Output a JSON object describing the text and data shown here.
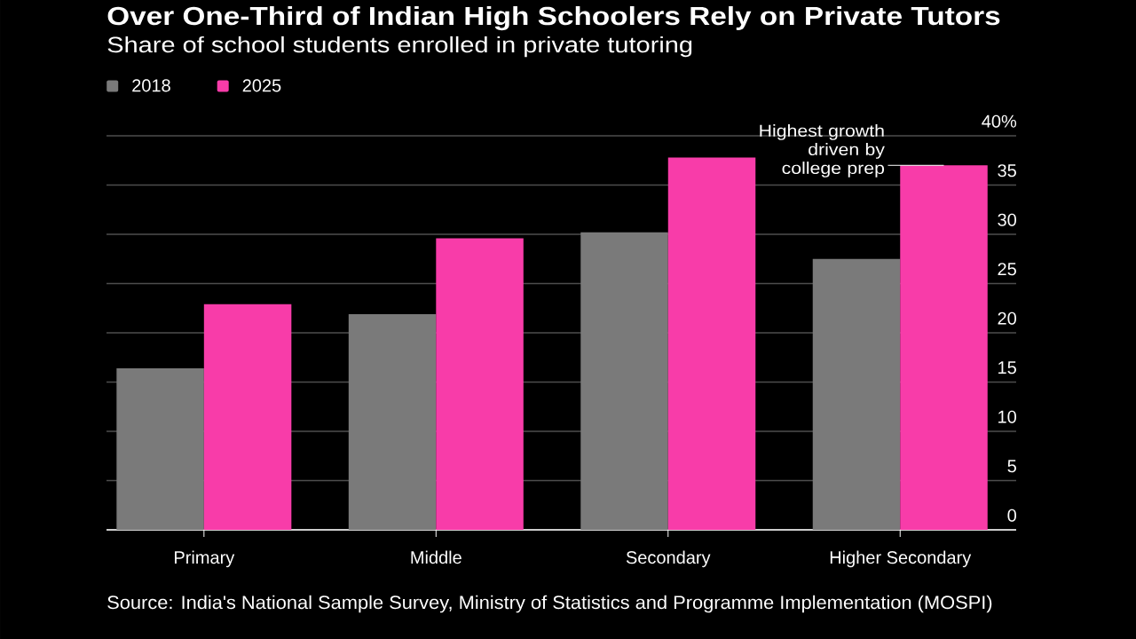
{
  "chart_data": {
    "type": "bar",
    "title": "Over One-Third of Indian High Schoolers Rely on Private Tutors",
    "subtitle": "Share of school students enrolled in private tutoring",
    "categories": [
      "Primary",
      "Middle",
      "Secondary",
      "Higher Secondary"
    ],
    "series": [
      {
        "name": "2018",
        "color": "#7a7a7a",
        "values": [
          16.4,
          21.9,
          30.2,
          27.5
        ]
      },
      {
        "name": "2025",
        "color": "#f83ca9",
        "values": [
          22.9,
          29.6,
          37.8,
          37.0
        ]
      }
    ],
    "ylim": [
      0,
      40
    ],
    "yticks": [
      0,
      5,
      10,
      15,
      20,
      25,
      30,
      35,
      {
        "value": 40,
        "label": "40%"
      }
    ],
    "grid": "y",
    "legend": "top left",
    "annotations": [
      {
        "text": "Highest growth driven by college prep",
        "x": "Higher Secondary",
        "y": 37.0
      },
      "Source: India's National Sample Survey, Ministry of Statistics and Programme Implementation (MOSPI)"
    ]
  }
}
